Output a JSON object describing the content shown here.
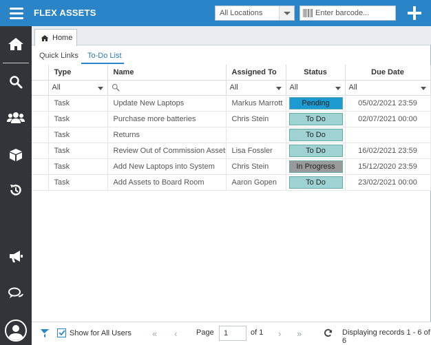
{
  "app": {
    "title": "FLEX ASSETS",
    "location_select": "All Locations",
    "barcode_placeholder": "Enter barcode...",
    "accent_color": "#2a84c8",
    "sidebar_color": "#313539"
  },
  "sidebar": {
    "items": [
      {
        "icon": "home-icon"
      },
      {
        "icon": "search-icon"
      },
      {
        "icon": "users-icon"
      },
      {
        "icon": "box-icon"
      },
      {
        "icon": "history-icon"
      },
      {
        "icon": "megaphone-icon"
      },
      {
        "icon": "chat-icon"
      },
      {
        "icon": "user-avatar-icon"
      }
    ]
  },
  "tabs": {
    "home_label": "Home",
    "subtabs": [
      {
        "label": "Quick Links",
        "active": false
      },
      {
        "label": "To-Do List",
        "active": true
      }
    ]
  },
  "grid": {
    "columns": {
      "type": "Type",
      "name": "Name",
      "assigned": "Assigned To",
      "status": "Status",
      "due": "Due Date"
    },
    "filters": {
      "type": "All",
      "name": "",
      "assigned": "All",
      "status": "All",
      "due": "All"
    },
    "rows": [
      {
        "type": "Task",
        "name": "Update New Laptops",
        "assigned": "Markus Marrott",
        "status": "Pending",
        "status_color": "#1b9bd1",
        "due": "05/02/2021 23:59",
        "overdue": true
      },
      {
        "type": "Task",
        "name": "Purchase more batteries",
        "assigned": "Chris Stein",
        "status": "To Do",
        "status_color": "#9fd3d3",
        "due": "02/07/2021 00:00",
        "overdue": false
      },
      {
        "type": "Task",
        "name": "Returns",
        "assigned": "",
        "status": "To Do",
        "status_color": "#9fd3d3",
        "due": "",
        "overdue": false
      },
      {
        "type": "Task",
        "name": "Review Out of Commission Assets",
        "assigned": "Lisa Fossler",
        "status": "To Do",
        "status_color": "#9fd3d3",
        "due": "16/02/2021 23:59",
        "overdue": true
      },
      {
        "type": "Task",
        "name": "Add New Laptops into System",
        "assigned": "Chris Stein",
        "status": "In Progress",
        "status_color": "#9a9a9a",
        "due": "15/12/2020 23:59",
        "overdue": true
      },
      {
        "type": "Task",
        "name": "Add Assets to Board Room",
        "assigned": "Aaron Gopen",
        "status": "To Do",
        "status_color": "#9fd3d3",
        "due": "23/02/2021 00:00",
        "overdue": true
      }
    ]
  },
  "footer": {
    "show_all_label": "Show for All Users",
    "show_all_checked": true,
    "page_label": "Page",
    "page_value": "1",
    "of_label": "of 1",
    "records_label": "Displaying records 1 - 6 of 6"
  }
}
